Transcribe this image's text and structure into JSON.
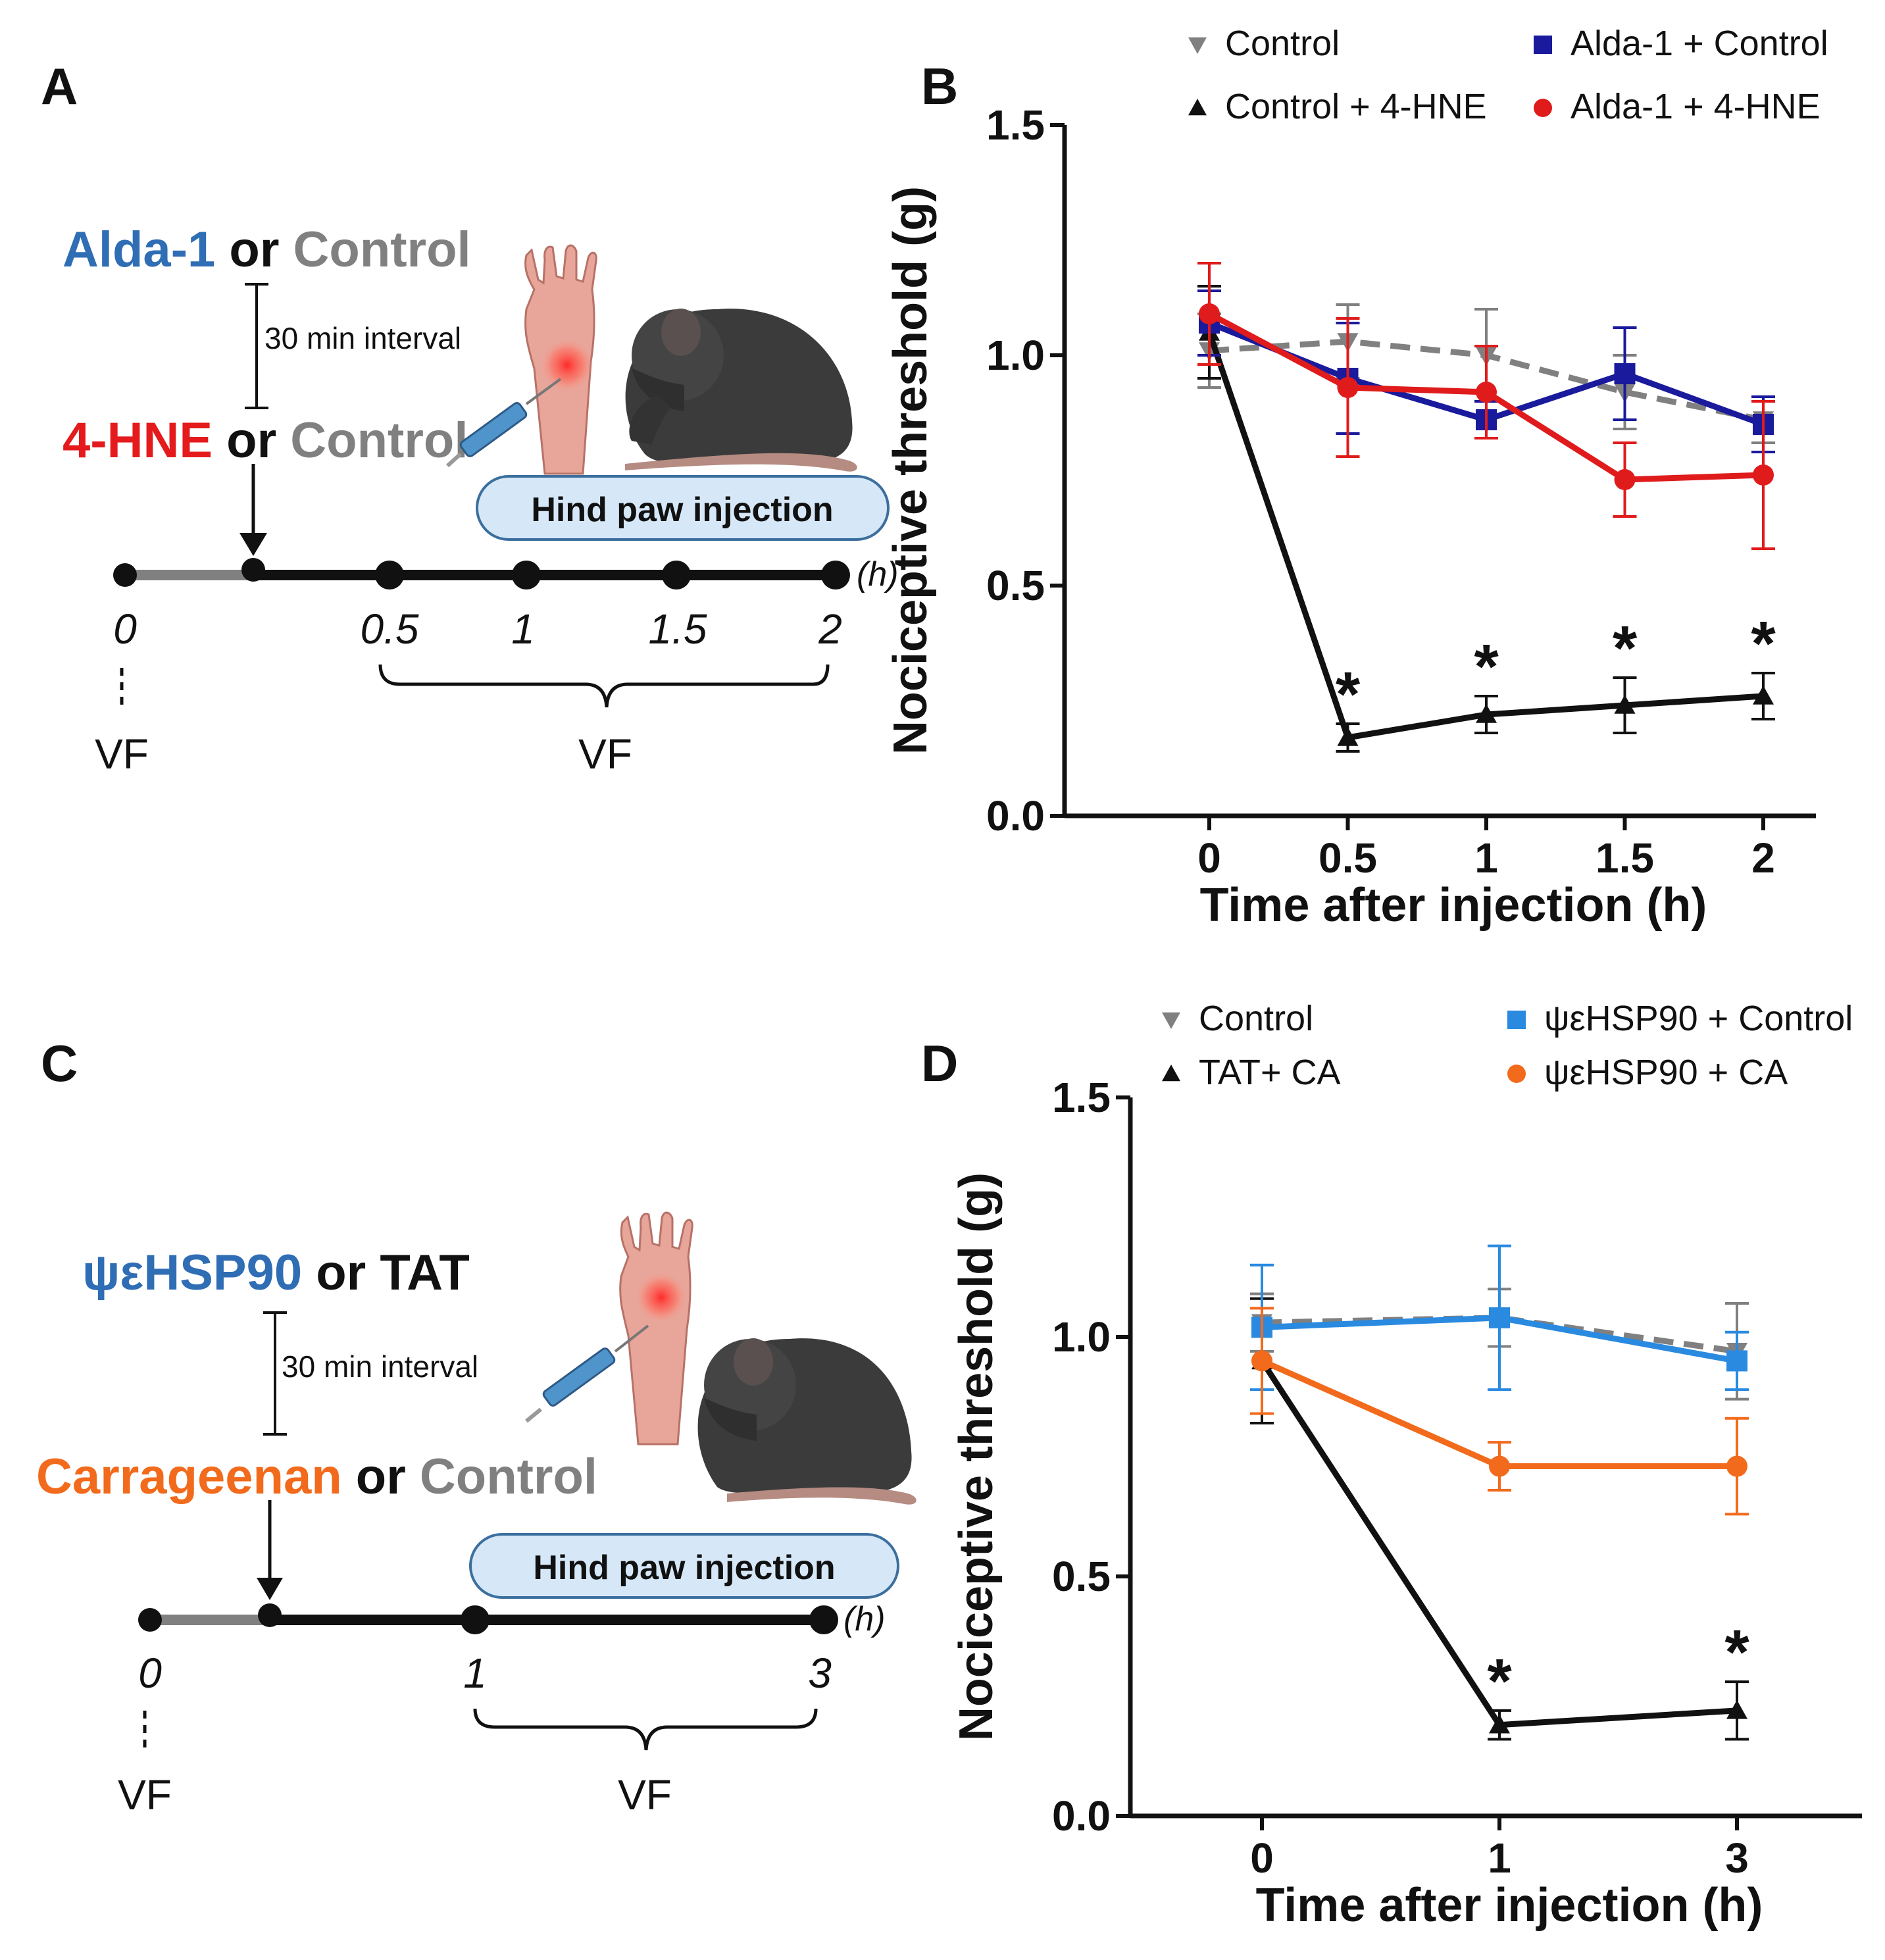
{
  "colors": {
    "alda": "#2f6db4",
    "hne": "#e41a1c",
    "grey": "#808080",
    "black": "#111111",
    "navy": "#1a1a9c",
    "red": "#e01b1b",
    "psi": "#2a8ae0",
    "orange": "#f26a1b",
    "lightblue": "#d6e8f8",
    "skin": "#e8a59a",
    "mouse": "#3b3b3b"
  },
  "panelA": {
    "letter": "A",
    "first_parts": [
      "Alda-1",
      " or ",
      "Control"
    ],
    "interval": "30 min interval",
    "second_parts": [
      "4-HNE",
      " or ",
      "Control"
    ],
    "badge": "Hind paw injection",
    "unit": "(h)",
    "ticks": [
      "0",
      "0.5",
      "1",
      "1.5",
      "2"
    ],
    "vf_left": "VF",
    "vf_right": "VF"
  },
  "panelC": {
    "letter": "C",
    "first_parts": [
      "ψεHSP90",
      " or ",
      "TAT"
    ],
    "interval": "30 min interval",
    "second_parts": [
      "Carrageenan",
      " or ",
      "Control"
    ],
    "badge": "Hind paw injection",
    "unit": "(h)",
    "ticks": [
      "0",
      "1",
      "3"
    ],
    "vf_left": "VF",
    "vf_right": "VF"
  },
  "chart_data": [
    {
      "panel": "B",
      "type": "line",
      "title": "",
      "xlabel": "Time after injection (h)",
      "ylabel": "Nociceptive threshold (g)",
      "categories": [
        "0",
        "0.5",
        "1",
        "1.5",
        "2"
      ],
      "yticks": [
        "0.0",
        "0.5",
        "1.0",
        "1.5"
      ],
      "ylim": [
        0,
        1.5
      ],
      "legend_position": "top",
      "series": [
        {
          "name": "Control",
          "values": [
            1.01,
            1.03,
            1.0,
            0.92,
            0.86
          ],
          "errors": [
            0.08,
            0.08,
            0.1,
            0.08,
            0.05
          ],
          "style": "dashed",
          "marker": "tri-down",
          "color": "grey"
        },
        {
          "name": "Control + 4-HNE",
          "values": [
            1.05,
            0.17,
            0.22,
            0.24,
            0.26
          ],
          "errors": [
            0.1,
            0.03,
            0.04,
            0.06,
            0.05
          ],
          "style": "solid",
          "marker": "triangle",
          "color": "black"
        },
        {
          "name": "Alda-1 + Control",
          "values": [
            1.07,
            0.95,
            0.86,
            0.96,
            0.85
          ],
          "errors": [
            0.07,
            0.12,
            0.04,
            0.1,
            0.06
          ],
          "style": "solid",
          "marker": "square",
          "color": "navy"
        },
        {
          "name": "Alda-1 + 4-HNE",
          "values": [
            1.09,
            0.93,
            0.92,
            0.73,
            0.74
          ],
          "errors": [
            0.11,
            0.15,
            0.1,
            0.08,
            0.16
          ],
          "style": "solid",
          "marker": "circle",
          "color": "red"
        }
      ],
      "annotations": [
        {
          "text": "*",
          "category": "0.5",
          "series": "Control + 4-HNE"
        },
        {
          "text": "*",
          "category": "1",
          "series": "Control + 4-HNE"
        },
        {
          "text": "*",
          "category": "1.5",
          "series": "Control + 4-HNE"
        },
        {
          "text": "*",
          "category": "2",
          "series": "Control + 4-HNE"
        }
      ]
    },
    {
      "panel": "D",
      "type": "line",
      "title": "",
      "xlabel": "Time after injection (h)",
      "ylabel": "Nociceptive threshold (g)",
      "categories": [
        "0",
        "1",
        "3"
      ],
      "yticks": [
        "0.0",
        "0.5",
        "1.0",
        "1.5"
      ],
      "ylim": [
        0,
        1.5
      ],
      "legend_position": "top",
      "series": [
        {
          "name": "Control",
          "values": [
            1.03,
            1.04,
            0.97
          ],
          "errors": [
            0.06,
            0.06,
            0.1
          ],
          "style": "dashed",
          "marker": "tri-down",
          "color": "grey"
        },
        {
          "name": "TAT+ CA",
          "values": [
            0.95,
            0.19,
            0.22
          ],
          "errors": [
            0.13,
            0.03,
            0.06
          ],
          "style": "solid",
          "marker": "triangle",
          "color": "black"
        },
        {
          "name": "ψεHSP90 + Control",
          "values": [
            1.02,
            1.04,
            0.95
          ],
          "errors": [
            0.13,
            0.15,
            0.06
          ],
          "style": "solid",
          "marker": "square",
          "color": "psi"
        },
        {
          "name": "ψεHSP90 + CA",
          "values": [
            0.95,
            0.73,
            0.73
          ],
          "errors": [
            0.11,
            0.05,
            0.1
          ],
          "style": "solid",
          "marker": "circle",
          "color": "orange"
        }
      ],
      "annotations": [
        {
          "text": "*",
          "category": "1",
          "series": "TAT+ CA"
        },
        {
          "text": "*",
          "category": "3",
          "series": "TAT+ CA"
        }
      ]
    }
  ]
}
